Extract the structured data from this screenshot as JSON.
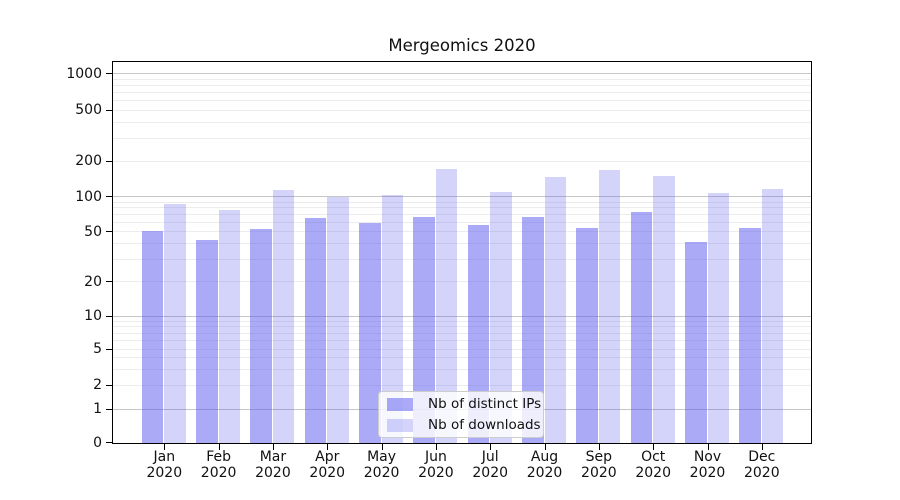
{
  "title": "Mergeomics 2020",
  "chart_data": {
    "type": "bar",
    "title": "Mergeomics 2020",
    "categories": [
      "Jan",
      "Feb",
      "Mar",
      "Apr",
      "May",
      "Jun",
      "Jul",
      "Aug",
      "Sep",
      "Oct",
      "Nov",
      "Dec"
    ],
    "category_year_line": "2020",
    "series": [
      {
        "name": "Nb of distinct IPs",
        "color": "#aaaaf6",
        "values": [
          51,
          43,
          53,
          66,
          60,
          68,
          58,
          68,
          54,
          74,
          42,
          54
        ]
      },
      {
        "name": "Nb of downloads",
        "color": "#d5d5fa",
        "values": [
          88,
          78,
          114,
          101,
          104,
          172,
          110,
          147,
          168,
          150,
          108,
          117
        ]
      }
    ],
    "yscale": "symlog",
    "yticks": [
      0,
      1,
      2,
      5,
      10,
      20,
      50,
      100,
      200,
      500,
      1000
    ],
    "major_grid_values": [
      1,
      10,
      100,
      1000
    ],
    "minor_grid_values": [
      2,
      3,
      4,
      5,
      6,
      7,
      8,
      9,
      20,
      30,
      40,
      50,
      60,
      70,
      80,
      90,
      200,
      300,
      400,
      500,
      600,
      700,
      800,
      900
    ],
    "ylim": [
      0,
      1000
    ],
    "grid": "on",
    "legend_position": "inside lower-center"
  }
}
